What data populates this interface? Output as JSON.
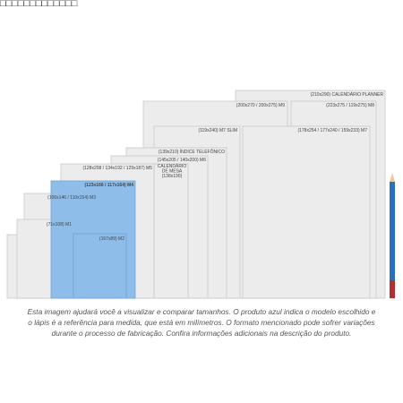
{
  "header": {
    "title": "□□□□□□□□□□□□□"
  },
  "sizes": [
    {
      "label": "(210x290) CALENDÁRIO PLANNER"
    },
    {
      "label": "(200x270 / 200x275) M9"
    },
    {
      "label": "(223x275 / 119x275) M8"
    },
    {
      "label": "(119x240) M7 SLIM"
    },
    {
      "label": "(178x254 / 177x240 / 159x233) M7"
    },
    {
      "label": "(139x210) ÍNDICE TELEFÔNICO"
    },
    {
      "label": "(145x205 / 140x200) M6"
    },
    {
      "label": "CALENDÁRIO DE MESA (138x190)"
    },
    {
      "label": "(128x208 / 134x192 / 129x187) M5"
    },
    {
      "label": "(123x166 / 117x164) M4"
    },
    {
      "label": "(100x146 / 110x154) M3"
    },
    {
      "label": "(71x108) M1"
    },
    {
      "label": "(167x89) M2"
    }
  ],
  "caption": [
    "Esta imagem ajudará você a visualizar e comparar tamanhos. O produto azul indica o modelo escolhido e",
    "o lápis é a referência para medida, que está em milímetros. O formato mencionado pode sofrer variações",
    "durante o processo de fabricação. Confira informações adicionais na descrição do produto."
  ]
}
